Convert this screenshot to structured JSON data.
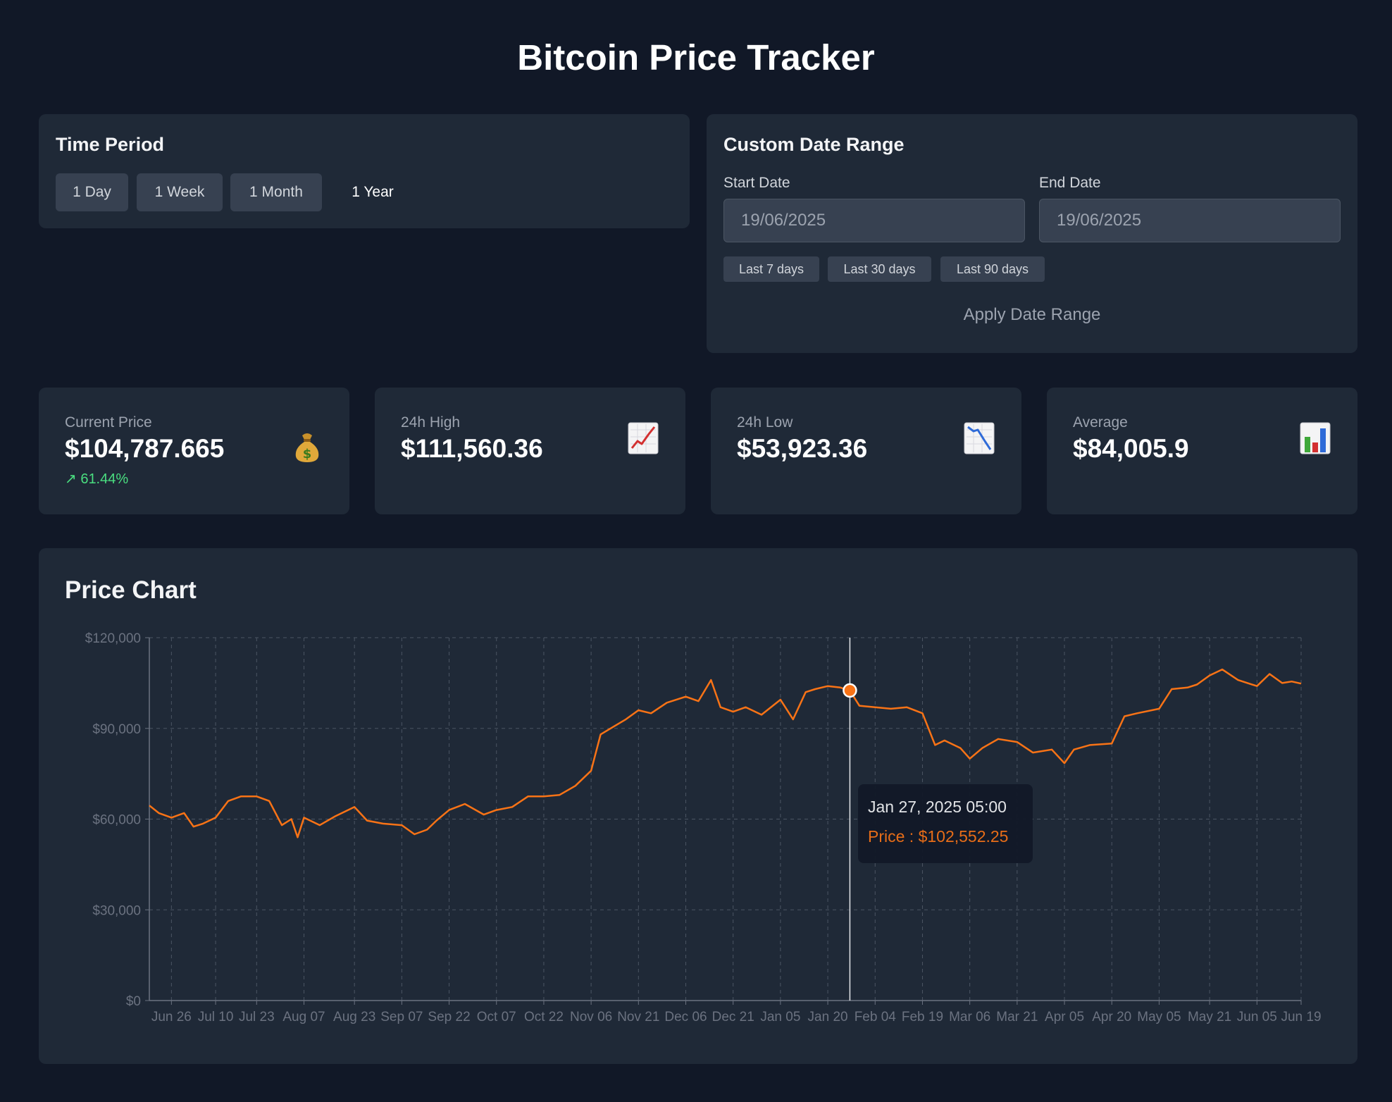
{
  "header": {
    "title": "Bitcoin Price Tracker"
  },
  "time_period": {
    "title": "Time Period",
    "buttons": [
      "1 Day",
      "1 Week",
      "1 Month",
      "1 Year"
    ],
    "active": "1 Year"
  },
  "date_range": {
    "title": "Custom Date Range",
    "start_label": "Start Date",
    "start_value": "19/06/2025",
    "end_label": "End Date",
    "end_value": "19/06/2025",
    "quick": [
      "Last 7 days",
      "Last 30 days",
      "Last 90 days"
    ],
    "apply_label": "Apply Date Range"
  },
  "stats": [
    {
      "label": "Current Price",
      "value": "$104,787.665",
      "change": "↗ 61.44%",
      "icon": "money-bag-icon"
    },
    {
      "label": "24h High",
      "value": "$111,560.36",
      "change": "",
      "icon": "chart-increasing-icon"
    },
    {
      "label": "24h Low",
      "value": "$53,923.36",
      "change": "",
      "icon": "chart-decreasing-icon"
    },
    {
      "label": "Average",
      "value": "$84,005.9",
      "change": "",
      "icon": "bar-chart-icon"
    }
  ],
  "colors": {
    "line": "#f97316",
    "accent_green": "#4ade80",
    "panel": "#1f2937",
    "background": "#111827"
  },
  "chart_data": {
    "type": "line",
    "title": "Price Chart",
    "ylim": [
      0,
      120000
    ],
    "yticks": [
      "$0",
      "$30,000",
      "$60,000",
      "$90,000",
      "$120,000"
    ],
    "ytick_values": [
      0,
      30000,
      60000,
      90000,
      120000
    ],
    "x_start": "2024-06-19",
    "x_end": "2025-06-19",
    "xticks": [
      "Jun 26",
      "Jul 10",
      "Jul 23",
      "Aug 07",
      "Aug 23",
      "Sep 07",
      "Sep 22",
      "Oct 07",
      "Oct 22",
      "Nov 06",
      "Nov 21",
      "Dec 06",
      "Dec 21",
      "Jan 05",
      "Jan 20",
      "Feb 04",
      "Feb 19",
      "Mar 06",
      "Mar 21",
      "Apr 05",
      "Apr 20",
      "May 05",
      "May 21",
      "Jun 05",
      "Jun 19"
    ],
    "xtick_dates": [
      "2024-06-26",
      "2024-07-10",
      "2024-07-23",
      "2024-08-07",
      "2024-08-23",
      "2024-09-07",
      "2024-09-22",
      "2024-10-07",
      "2024-10-22",
      "2024-11-06",
      "2024-11-21",
      "2024-12-06",
      "2024-12-21",
      "2025-01-05",
      "2025-01-20",
      "2025-02-04",
      "2025-02-19",
      "2025-03-06",
      "2025-03-21",
      "2025-04-05",
      "2025-04-20",
      "2025-05-05",
      "2025-05-21",
      "2025-06-05",
      "2025-06-19"
    ],
    "grid": true,
    "series": [
      {
        "dates": [
          "2024-06-19",
          "2024-06-22",
          "2024-06-26",
          "2024-06-30",
          "2024-07-03",
          "2024-07-06",
          "2024-07-10",
          "2024-07-14",
          "2024-07-18",
          "2024-07-23",
          "2024-07-27",
          "2024-07-31",
          "2024-08-03",
          "2024-08-05",
          "2024-08-07",
          "2024-08-12",
          "2024-08-17",
          "2024-08-23",
          "2024-08-27",
          "2024-09-01",
          "2024-09-07",
          "2024-09-11",
          "2024-09-15",
          "2024-09-18",
          "2024-09-22",
          "2024-09-27",
          "2024-10-03",
          "2024-10-07",
          "2024-10-12",
          "2024-10-17",
          "2024-10-22",
          "2024-10-27",
          "2024-11-01",
          "2024-11-06",
          "2024-11-09",
          "2024-11-13",
          "2024-11-17",
          "2024-11-21",
          "2024-11-25",
          "2024-11-30",
          "2024-12-06",
          "2024-12-10",
          "2024-12-14",
          "2024-12-17",
          "2024-12-21",
          "2024-12-25",
          "2024-12-30",
          "2025-01-05",
          "2025-01-09",
          "2025-01-13",
          "2025-01-16",
          "2025-01-20",
          "2025-01-24",
          "2025-01-27",
          "2025-01-30",
          "2025-02-04",
          "2025-02-09",
          "2025-02-14",
          "2025-02-19",
          "2025-02-23",
          "2025-02-26",
          "2025-03-03",
          "2025-03-06",
          "2025-03-10",
          "2025-03-15",
          "2025-03-21",
          "2025-03-26",
          "2025-04-01",
          "2025-04-05",
          "2025-04-08",
          "2025-04-13",
          "2025-04-20",
          "2025-04-24",
          "2025-04-28",
          "2025-05-05",
          "2025-05-09",
          "2025-05-14",
          "2025-05-17",
          "2025-05-21",
          "2025-05-25",
          "2025-05-30",
          "2025-06-05",
          "2025-06-09",
          "2025-06-13",
          "2025-06-16",
          "2025-06-19"
        ],
        "values": [
          64500,
          62000,
          60500,
          62000,
          57500,
          58500,
          60500,
          66000,
          67500,
          67500,
          66000,
          58000,
          60000,
          54000,
          60500,
          58000,
          61000,
          64000,
          59500,
          58500,
          58000,
          55000,
          56500,
          59500,
          63000,
          65000,
          61500,
          63000,
          64000,
          67500,
          67500,
          68000,
          71000,
          76000,
          88000,
          90500,
          93000,
          96000,
          95000,
          98500,
          100500,
          99000,
          106000,
          97000,
          95500,
          97000,
          94500,
          99500,
          93000,
          102000,
          103000,
          104000,
          103500,
          102500,
          97500,
          97000,
          96500,
          97000,
          95000,
          84500,
          86000,
          83500,
          80000,
          83500,
          86500,
          85500,
          82000,
          83000,
          78500,
          83000,
          84500,
          85000,
          94000,
          95000,
          96500,
          103000,
          103500,
          104500,
          107500,
          109500,
          106000,
          104000,
          108000,
          105000,
          105500,
          104800
        ]
      }
    ],
    "tooltip": {
      "label": "Jan 27, 2025 05:00",
      "price_text": "Price : $102,552.25",
      "date": "2025-01-27",
      "value": 102552.25
    }
  }
}
